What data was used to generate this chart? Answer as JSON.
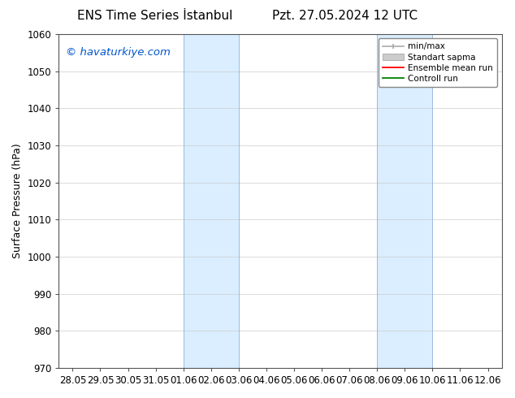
{
  "title_left": "ENS Time Series İstanbul",
  "title_right": "Pzt. 27.05.2024 12 UTC",
  "ylabel": "Surface Pressure (hPa)",
  "ylim": [
    970,
    1060
  ],
  "yticks": [
    970,
    980,
    990,
    1000,
    1010,
    1020,
    1030,
    1040,
    1050,
    1060
  ],
  "xlabel_dates": [
    "28.05",
    "29.05",
    "30.05",
    "31.05",
    "01.06",
    "02.06",
    "03.06",
    "04.06",
    "05.06",
    "06.06",
    "07.06",
    "08.06",
    "09.06",
    "10.06",
    "11.06",
    "12.06"
  ],
  "watermark": "© havaturkiye.com",
  "watermark_color": "#0055cc",
  "bg_color": "#ffffff",
  "plot_bg_color": "#ffffff",
  "shaded_bands": [
    {
      "x_start": "01.06",
      "x_end": "03.06"
    },
    {
      "x_start": "08.06",
      "x_end": "10.06"
    }
  ],
  "shaded_color": "#daeeff",
  "shaded_edge_color": "#99bbdd",
  "legend_labels": [
    "min/max",
    "Standart sapma",
    "Ensemble mean run",
    "Controll run"
  ],
  "legend_colors": [
    "#aaaaaa",
    "#cccccc",
    "#ff0000",
    "#008000"
  ],
  "title_fontsize": 11,
  "tick_fontsize": 8.5,
  "ylabel_fontsize": 9,
  "watermark_fontsize": 9.5
}
